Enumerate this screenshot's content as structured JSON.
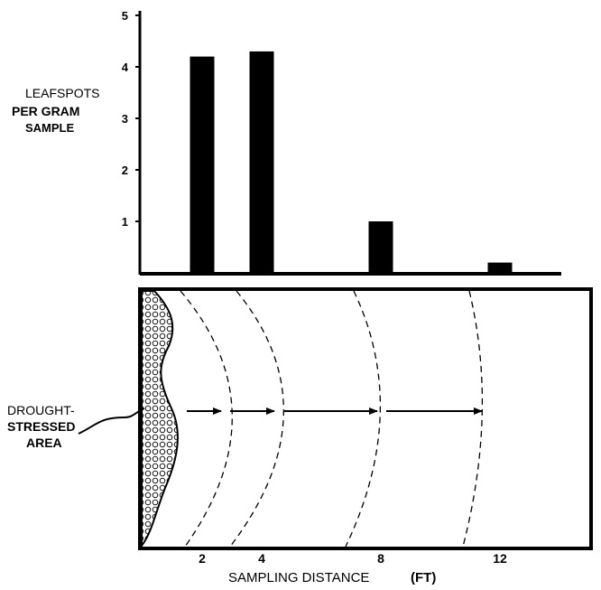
{
  "chart_data": {
    "type": "bar",
    "ylabel": [
      "LEAFSPOTS",
      "PER GRAM",
      "SAMPLE"
    ],
    "yticks": [
      "5",
      "4",
      "3",
      "2",
      "1"
    ],
    "ylim": [
      0,
      5
    ],
    "bars": [
      {
        "x": 2,
        "value": 4.2
      },
      {
        "x": 4,
        "value": 4.3
      },
      {
        "x": 8,
        "value": 1.0
      },
      {
        "x": 12,
        "value": 0.2
      }
    ],
    "xticks": [
      "2",
      "4",
      "8",
      "12"
    ],
    "xlabel": "SAMPLING DISTANCE",
    "xunit": "(FT)",
    "annotation": [
      "DROUGHT-",
      "STRESSED",
      "AREA"
    ]
  }
}
